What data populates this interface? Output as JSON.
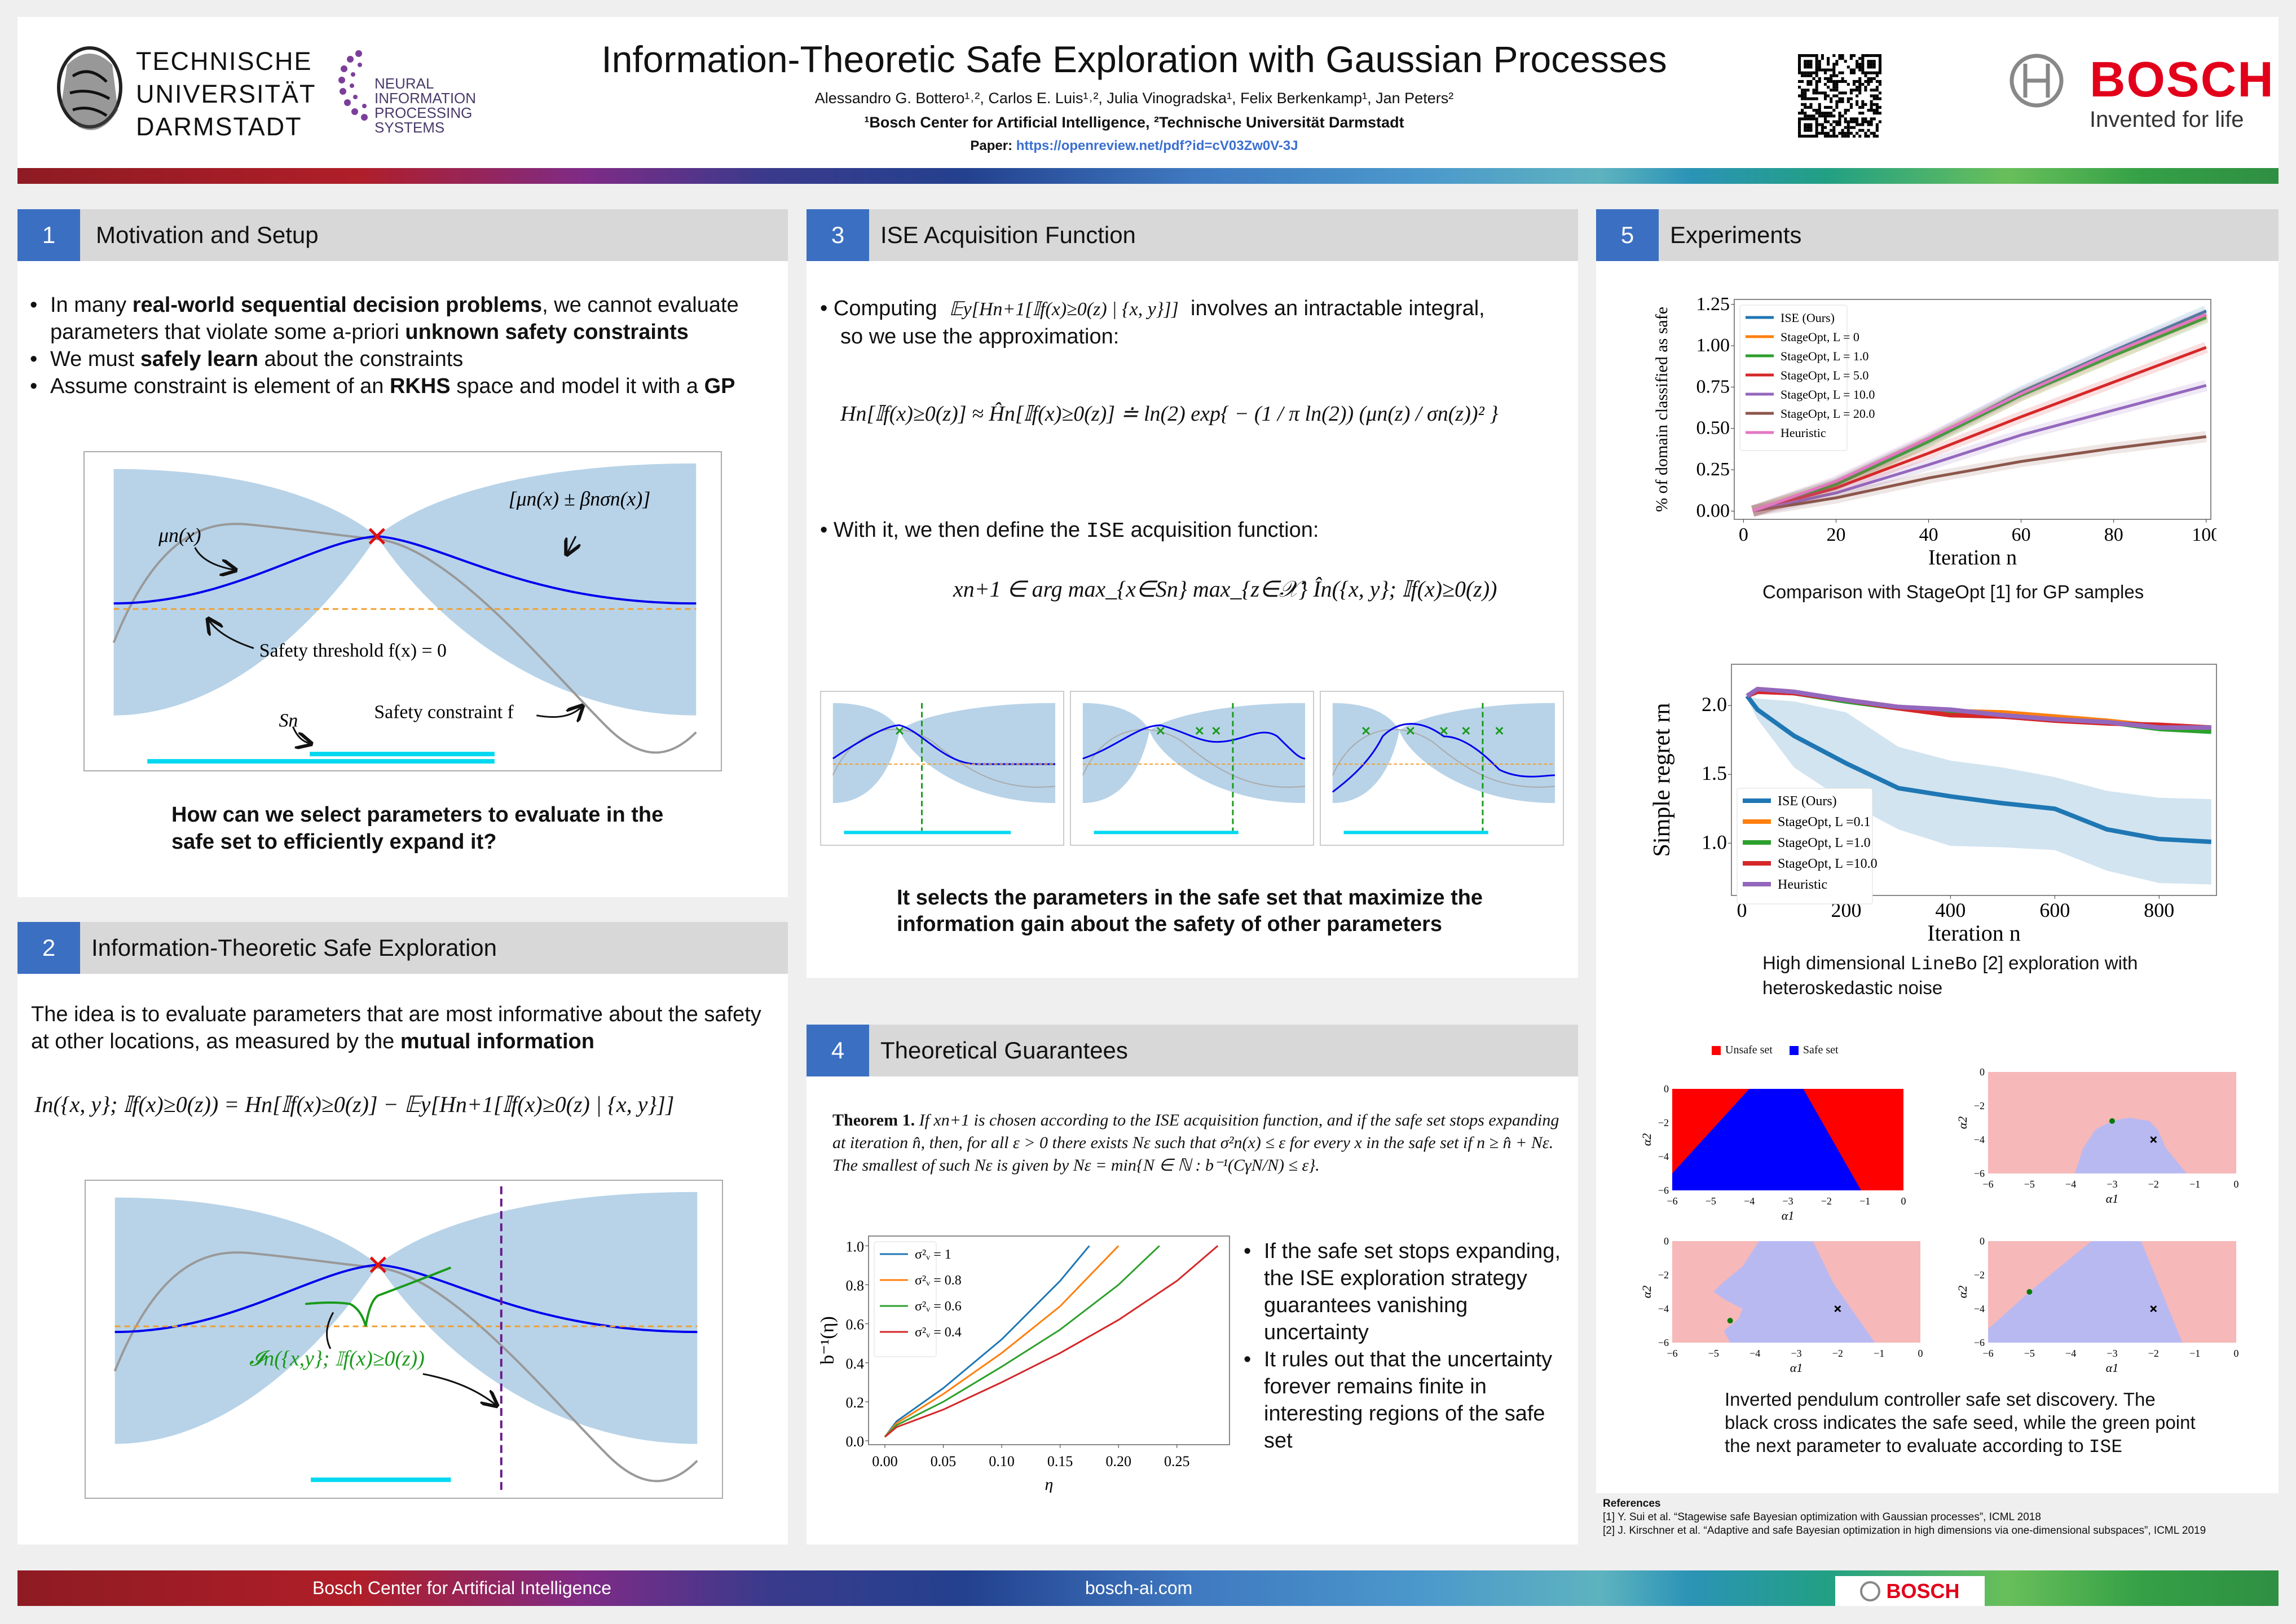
{
  "header": {
    "title": "Information-Theoretic Safe Exploration with Gaussian Processes",
    "authors": "Alessandro G. Bottero¹˒², Carlos E. Luis¹˒², Julia Vinogradska¹, Felix Berkenkamp¹, Jan Peters²",
    "affiliations": "¹Bosch Center for Artificial Intelligence, ²Technische Universität Darmstadt",
    "paper_label": "Paper:",
    "paper_link": "https://openreview.net/pdf?id=cV03Zw0V-3J",
    "tu_logo": [
      "TECHNISCHE",
      "UNIVERSITÄT",
      "DARMSTADT"
    ],
    "nips_logo": [
      "NEURAL",
      "INFORMATION",
      "PROCESSING",
      "SYSTEMS"
    ],
    "bosch_logo": "BOSCH",
    "bosch_tagline": "Invented for life"
  },
  "sections": {
    "s1": {
      "number": "1",
      "title": "Motivation and Setup",
      "bullets": [
        [
          "In many ",
          "real-world sequential decision problems",
          ", we cannot evaluate parameters that violate some a-priori ",
          "unknown safety constraints",
          ""
        ],
        [
          "We must ",
          "safely learn",
          " about the constraints",
          "",
          ""
        ],
        [
          "Assume constraint is element of an ",
          "RKHS",
          " space and model it with a ",
          "GP",
          ""
        ]
      ],
      "diagram": {
        "mean_label": "μn(x)",
        "band_label": "[μn(x) ± βnσn(x)]",
        "threshold_label": "Safety threshold f(x) = 0",
        "safe_set_label": "Sn",
        "constraint_label": "Safety constraint f"
      },
      "question": "How can we select parameters to evaluate in the safe set to efficiently expand it?"
    },
    "s2": {
      "number": "2",
      "title": "Information-Theoretic Safe Exploration",
      "intro": [
        "The idea is to evaluate parameters that are most informative about the safety at other locations, as measured by the ",
        "mutual information"
      ],
      "formula": "In({x, y}; 𝕀f(x)≥0(z)) = Hn[𝕀f(x)≥0(z)] − 𝔼y[Hn+1[𝕀f(x)≥0(z) | {x, y}]]",
      "diagram_label": "𝓘n({x,y}; 𝕀f(x)≥0(z))"
    },
    "s3": {
      "number": "3",
      "title": "ISE Acquisition Function",
      "bullet1_a": "Computing",
      "bullet1_formula": "𝔼y[Hn+1[𝕀f(x)≥0(z) | {x, y}]]",
      "bullet1_b": "involves an intractable integral,",
      "bullet1_c": "so we use the approximation:",
      "approx_formula": "Hn[𝕀f(x)≥0(z)] ≈ Ĥn[𝕀f(x)≥0(z)] ≐ ln(2) exp{ − (1 / π ln(2)) (μn(z) / σn(z))² }",
      "bullet2_a": "With it, we then define the ",
      "bullet2_code": "ISE",
      "bullet2_b": " acquisition function:",
      "acq_formula": "xn+1 ∈ arg max_{x∈Sn} max_{z∈𝒳} În({x, y}; 𝕀f(x)≥0(z))",
      "caption": "It selects the parameters in the safe set that maximize the information gain about the safety of other parameters"
    },
    "s4": {
      "number": "4",
      "title": "Theoretical Guarantees",
      "theorem_label": "Theorem 1.",
      "theorem_text": "If xn+1 is chosen according to the ISE acquisition function, and if the safe set stops expanding at iteration n̂, then, for all ε > 0 there exists Nε such that σ²n(x) ≤ ε for every x in the safe set if n ≥ n̂ + Nε. The smallest of such Nε is given by Nε = min{N ∈ ℕ : b⁻¹(CγN/N) ≤ ε}.",
      "bullets": [
        "If the safe set stops expanding, the ISE exploration strategy guarantees vanishing uncertainty",
        "It rules out that the uncertainty forever remains finite in interesting regions of the safe set"
      ]
    },
    "s5": {
      "number": "5",
      "title": "Experiments",
      "caption1": "Comparison with StageOpt [1] for GP samples",
      "caption2_a": "High dimensional ",
      "caption2_code": "LineBo",
      "caption2_b": " [2] exploration with heteroskedastic noise",
      "caption3_a": "Inverted pendulum controller safe set discovery. The black cross indicates the safe seed, while the green point the next parameter to evaluate according to ",
      "caption3_code": "ISE"
    }
  },
  "references": {
    "title": "References",
    "items": [
      "[1] Y. Sui et al. “Stagewise safe Bayesian optimization with Gaussian processes”, ICML 2018",
      "[2] J. Kirschner et al. “Adaptive and safe Bayesian optimization in high dimensions via one-dimensional subspaces”, ICML 2019"
    ]
  },
  "footer": {
    "left": "Bosch Center for Artificial Intelligence",
    "center": "bosch-ai.com",
    "logo": "BOSCH"
  },
  "colors": {
    "accent": "#3b6fc2",
    "bosch_red": "#e2001a",
    "band": "#b8d3e8",
    "mean": "#0000ee",
    "threshold": "#f0a030",
    "safe_bar": "#00d8f0"
  },
  "chart_data": [
    {
      "id": "safe-fraction",
      "type": "line",
      "xlabel": "Iteration n",
      "ylabel": "% of domain classified as safe",
      "xlim": [
        -2,
        101
      ],
      "ylim": [
        -0.05,
        1.28
      ],
      "xticks": [
        0,
        20,
        40,
        60,
        80,
        100
      ],
      "yticks": [
        0.0,
        0.25,
        0.5,
        0.75,
        1.0,
        1.25
      ],
      "yticklabels": [
        "0.00",
        "0.25",
        "0.50",
        "0.75",
        "1.00",
        "1.25"
      ],
      "legend": "top-left",
      "x": [
        2,
        20,
        40,
        60,
        80,
        100
      ],
      "series": [
        {
          "name": "ISE (Ours)",
          "color": "#1f77b4",
          "values": [
            0,
            0.17,
            0.43,
            0.72,
            0.97,
            1.21
          ]
        },
        {
          "name": "StageOpt, L = 0",
          "color": "#ff7f0e",
          "values": [
            0,
            0.16,
            0.42,
            0.7,
            0.94,
            1.18
          ]
        },
        {
          "name": "StageOpt, L = 1.0",
          "color": "#2ca02c",
          "values": [
            0,
            0.16,
            0.42,
            0.7,
            0.94,
            1.17
          ]
        },
        {
          "name": "StageOpt, L = 5.0",
          "color": "#d62728",
          "values": [
            0,
            0.14,
            0.35,
            0.57,
            0.78,
            0.99
          ]
        },
        {
          "name": "StageOpt, L = 10.0",
          "color": "#9467bd",
          "values": [
            0,
            0.11,
            0.28,
            0.46,
            0.61,
            0.76
          ]
        },
        {
          "name": "StageOpt, L = 20.0",
          "color": "#8c564b",
          "values": [
            0,
            0.08,
            0.2,
            0.3,
            0.38,
            0.45
          ]
        },
        {
          "name": "Heuristic",
          "color": "#e377c2",
          "values": [
            0,
            0.18,
            0.44,
            0.71,
            0.96,
            1.19
          ]
        }
      ]
    },
    {
      "id": "simple-regret",
      "type": "line",
      "xlabel": "Iteration n",
      "ylabel": "Simple regret rn",
      "xlim": [
        -20,
        910
      ],
      "ylim": [
        0.62,
        2.3
      ],
      "xticks": [
        0,
        200,
        400,
        600,
        800
      ],
      "yticks": [
        1.0,
        1.5,
        2.0
      ],
      "yticklabels": [
        "1.0",
        "1.5",
        "2.0"
      ],
      "legend": "bottom-left",
      "x": [
        10,
        30,
        100,
        200,
        300,
        400,
        500,
        600,
        700,
        800,
        900
      ],
      "series": [
        {
          "name": "ISE (Ours)",
          "color": "#1f77b4",
          "values": [
            2.07,
            1.97,
            1.78,
            1.58,
            1.4,
            1.34,
            1.29,
            1.25,
            1.1,
            1.03,
            1.01
          ],
          "band_lower": [
            2.05,
            1.9,
            1.55,
            1.3,
            1.1,
            0.98,
            0.97,
            0.95,
            0.8,
            0.71,
            0.7
          ],
          "band_upper": [
            2.07,
            2.05,
            2.03,
            1.95,
            1.7,
            1.6,
            1.55,
            1.48,
            1.38,
            1.33,
            1.32
          ]
        },
        {
          "name": "StageOpt, L =0.1",
          "color": "#ff7f0e",
          "values": [
            2.07,
            2.11,
            2.09,
            2.04,
            1.99,
            1.96,
            1.95,
            1.92,
            1.89,
            1.85,
            1.83
          ]
        },
        {
          "name": "StageOpt, L =1.0",
          "color": "#2ca02c",
          "values": [
            2.07,
            2.11,
            2.09,
            2.03,
            1.98,
            1.95,
            1.92,
            1.9,
            1.88,
            1.83,
            1.81
          ]
        },
        {
          "name": "StageOpt, L =10.0",
          "color": "#d62728",
          "values": [
            2.07,
            2.1,
            2.09,
            2.04,
            1.98,
            1.93,
            1.92,
            1.89,
            1.87,
            1.86,
            1.84
          ]
        },
        {
          "name": "Heuristic",
          "color": "#9467bd",
          "values": [
            2.07,
            2.12,
            2.1,
            2.04,
            1.99,
            1.97,
            1.93,
            1.9,
            1.88,
            1.84,
            1.84
          ]
        }
      ]
    },
    {
      "id": "b-inverse",
      "type": "line",
      "xlabel": "η",
      "ylabel": "b⁻¹(η)",
      "xlim": [
        -0.014,
        0.295
      ],
      "ylim": [
        -0.02,
        1.05
      ],
      "xticks": [
        0.0,
        0.05,
        0.1,
        0.15,
        0.2,
        0.25
      ],
      "xticklabels": [
        "0.00",
        "0.05",
        "0.10",
        "0.15",
        "0.20",
        "0.25"
      ],
      "yticks": [
        0.0,
        0.2,
        0.4,
        0.6,
        0.8,
        1.0
      ],
      "yticklabels": [
        "0.0",
        "0.2",
        "0.4",
        "0.6",
        "0.8",
        "1.0"
      ],
      "legend": "top-left",
      "series": [
        {
          "name": "σ²ᵥ = 1",
          "color": "#1f77b4",
          "x": [
            0,
            0.01,
            0.05,
            0.1,
            0.15,
            0.175
          ],
          "values": [
            0.02,
            0.1,
            0.27,
            0.52,
            0.82,
            1.0
          ]
        },
        {
          "name": "σ²ᵥ = 0.8",
          "color": "#ff7f0e",
          "x": [
            0,
            0.01,
            0.05,
            0.1,
            0.15,
            0.2
          ],
          "values": [
            0.02,
            0.09,
            0.24,
            0.45,
            0.69,
            1.0
          ]
        },
        {
          "name": "σ²ᵥ = 0.6",
          "color": "#2ca02c",
          "x": [
            0,
            0.01,
            0.05,
            0.1,
            0.15,
            0.2,
            0.235
          ],
          "values": [
            0.02,
            0.08,
            0.2,
            0.38,
            0.57,
            0.8,
            1.0
          ]
        },
        {
          "name": "σ²ᵥ = 0.4",
          "color": "#d62728",
          "x": [
            0,
            0.01,
            0.05,
            0.1,
            0.15,
            0.2,
            0.25,
            0.285
          ],
          "values": [
            0.02,
            0.07,
            0.16,
            0.3,
            0.45,
            0.62,
            0.82,
            1.0
          ]
        }
      ]
    },
    {
      "id": "pendulum",
      "type": "heatmap",
      "xlabel": "α1",
      "ylabel": "α2",
      "xlim": [
        -6,
        0
      ],
      "ylim": [
        -6,
        0
      ],
      "xticks": [
        -6,
        -5,
        -4,
        -3,
        -2,
        -1,
        0
      ],
      "yticks": [
        0,
        -2,
        -4,
        -6
      ],
      "legend_items": [
        {
          "name": "Unsafe set",
          "color": "#ff0000"
        },
        {
          "name": "Safe set",
          "color": "#0000ff"
        }
      ],
      "panels": [
        {
          "kind": "true",
          "safe_polygon": [
            [
              -4,
              0
            ],
            [
              -2.6,
              0
            ],
            [
              -1.1,
              -6
            ],
            [
              -6,
              -6
            ],
            [
              -6,
              -5
            ]
          ]
        },
        {
          "kind": "estimate",
          "safe_polygon": [
            [
              -3.9,
              -6
            ],
            [
              -3.7,
              -4.5
            ],
            [
              -3.4,
              -3.4
            ],
            [
              -3,
              -2.9
            ],
            [
              -2.6,
              -2.7
            ],
            [
              -2.1,
              -2.9
            ],
            [
              -1.9,
              -3.4
            ],
            [
              -1.7,
              -4.5
            ],
            [
              -1.2,
              -6
            ]
          ],
          "seed": [
            -2,
            -4
          ],
          "next": [
            -3,
            -2.9
          ]
        },
        {
          "kind": "estimate",
          "safe_polygon": [
            [
              -3.9,
              0
            ],
            [
              -2.6,
              0
            ],
            [
              -2.1,
              -2.5
            ],
            [
              -1.1,
              -6
            ],
            [
              -4.6,
              -6
            ],
            [
              -4.75,
              -5.3
            ],
            [
              -4.4,
              -4.6
            ],
            [
              -4.3,
              -4
            ],
            [
              -4.7,
              -3.5
            ],
            [
              -5,
              -3
            ],
            [
              -4.8,
              -2.5
            ],
            [
              -4.3,
              -1.5
            ]
          ],
          "seed": [
            -2,
            -4
          ],
          "next": [
            -4.6,
            -4.7
          ]
        },
        {
          "kind": "estimate",
          "safe_polygon": [
            [
              -3.5,
              0
            ],
            [
              -2.3,
              0
            ],
            [
              -1.3,
              -6
            ],
            [
              -6,
              -6
            ],
            [
              -6,
              -5.2
            ],
            [
              -5,
              -3
            ]
          ],
          "seed": [
            -2,
            -4
          ],
          "next": [
            -5,
            -3
          ]
        }
      ]
    }
  ]
}
